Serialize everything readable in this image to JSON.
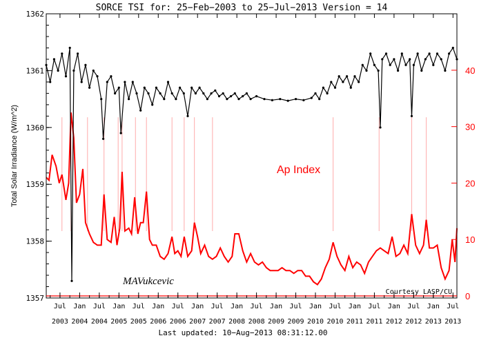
{
  "chart_data": {
    "type": "line",
    "title": "SORCE TSI for: 25−Feb−2003 to 25−Jul−2013 Version = 14",
    "footer": "Last updated: 10−Aug−2013 08:31:12.00",
    "courtesy": "Courtesy LASP/CU",
    "signature": "MAVukcevic",
    "ylabel_left": "Total Solar Irradiance (W/m^2)",
    "overlay_label": "Ap Index",
    "colors": {
      "tsi": "#000000",
      "ap": "#ff0000",
      "axis": "#000000"
    },
    "x_range": [
      2003.15,
      2013.6
    ],
    "y_left": {
      "lim": [
        1357,
        1362
      ],
      "ticks": [
        1357,
        1358,
        1359,
        1360,
        1361,
        1362
      ]
    },
    "y_right": {
      "lim": [
        0,
        50
      ],
      "ticks": [
        0,
        10,
        20,
        30,
        40
      ]
    },
    "x_ticks": [
      {
        "top": "Jul",
        "bottom": "2003",
        "x": 2003.5
      },
      {
        "top": "Jan",
        "bottom": "2004",
        "x": 2004.0
      },
      {
        "top": "Jul",
        "bottom": "2004",
        "x": 2004.5
      },
      {
        "top": "Jan",
        "bottom": "2005",
        "x": 2005.0
      },
      {
        "top": "Jul",
        "bottom": "2005",
        "x": 2005.5
      },
      {
        "top": "Jan",
        "bottom": "2006",
        "x": 2006.0
      },
      {
        "top": "Jul",
        "bottom": "2006",
        "x": 2006.5
      },
      {
        "top": "Jan",
        "bottom": "2007",
        "x": 2007.0
      },
      {
        "top": "Jul",
        "bottom": "2007",
        "x": 2007.5
      },
      {
        "top": "Jan",
        "bottom": "2008",
        "x": 2008.0
      },
      {
        "top": "Jul",
        "bottom": "2008",
        "x": 2008.5
      },
      {
        "top": "Jan",
        "bottom": "2009",
        "x": 2009.0
      },
      {
        "top": "Jul",
        "bottom": "2009",
        "x": 2009.5
      },
      {
        "top": "Jan",
        "bottom": "2010",
        "x": 2010.0
      },
      {
        "top": "Jul",
        "bottom": "2010",
        "x": 2010.5
      },
      {
        "top": "Jan",
        "bottom": "2011",
        "x": 2011.0
      },
      {
        "top": "Jul",
        "bottom": "2011",
        "x": 2011.5
      },
      {
        "top": "Jan",
        "bottom": "2012",
        "x": 2012.0
      },
      {
        "top": "Jul",
        "bottom": "2012",
        "x": 2012.5
      },
      {
        "top": "Jan",
        "bottom": "2013",
        "x": 2013.0
      },
      {
        "top": "Jul",
        "bottom": "2013",
        "x": 2013.5
      }
    ],
    "series": [
      {
        "name": "TSI",
        "axis": "left",
        "points": [
          [
            2003.15,
            1361.1
          ],
          [
            2003.25,
            1360.8
          ],
          [
            2003.35,
            1361.2
          ],
          [
            2003.45,
            1361.0
          ],
          [
            2003.55,
            1361.3
          ],
          [
            2003.65,
            1360.9
          ],
          [
            2003.75,
            1361.4
          ],
          [
            2003.8,
            1357.3
          ],
          [
            2003.85,
            1361.0
          ],
          [
            2003.95,
            1361.3
          ],
          [
            2004.05,
            1360.8
          ],
          [
            2004.15,
            1361.1
          ],
          [
            2004.25,
            1360.7
          ],
          [
            2004.35,
            1361.0
          ],
          [
            2004.45,
            1360.9
          ],
          [
            2004.55,
            1360.5
          ],
          [
            2004.6,
            1359.8
          ],
          [
            2004.7,
            1360.8
          ],
          [
            2004.8,
            1360.9
          ],
          [
            2004.9,
            1360.6
          ],
          [
            2005.0,
            1360.7
          ],
          [
            2005.05,
            1359.9
          ],
          [
            2005.15,
            1360.8
          ],
          [
            2005.25,
            1360.5
          ],
          [
            2005.35,
            1360.8
          ],
          [
            2005.45,
            1360.6
          ],
          [
            2005.55,
            1360.3
          ],
          [
            2005.65,
            1360.7
          ],
          [
            2005.75,
            1360.6
          ],
          [
            2005.85,
            1360.4
          ],
          [
            2005.95,
            1360.7
          ],
          [
            2006.05,
            1360.6
          ],
          [
            2006.15,
            1360.5
          ],
          [
            2006.25,
            1360.8
          ],
          [
            2006.35,
            1360.6
          ],
          [
            2006.45,
            1360.5
          ],
          [
            2006.55,
            1360.7
          ],
          [
            2006.65,
            1360.6
          ],
          [
            2006.75,
            1360.2
          ],
          [
            2006.85,
            1360.7
          ],
          [
            2006.95,
            1360.6
          ],
          [
            2007.05,
            1360.7
          ],
          [
            2007.15,
            1360.6
          ],
          [
            2007.25,
            1360.5
          ],
          [
            2007.35,
            1360.6
          ],
          [
            2007.45,
            1360.65
          ],
          [
            2007.55,
            1360.55
          ],
          [
            2007.65,
            1360.6
          ],
          [
            2007.75,
            1360.5
          ],
          [
            2007.85,
            1360.55
          ],
          [
            2007.95,
            1360.6
          ],
          [
            2008.05,
            1360.5
          ],
          [
            2008.15,
            1360.55
          ],
          [
            2008.25,
            1360.6
          ],
          [
            2008.35,
            1360.5
          ],
          [
            2008.5,
            1360.55
          ],
          [
            2008.7,
            1360.5
          ],
          [
            2008.9,
            1360.48
          ],
          [
            2009.1,
            1360.5
          ],
          [
            2009.3,
            1360.47
          ],
          [
            2009.5,
            1360.5
          ],
          [
            2009.7,
            1360.48
          ],
          [
            2009.9,
            1360.52
          ],
          [
            2010.0,
            1360.6
          ],
          [
            2010.1,
            1360.5
          ],
          [
            2010.2,
            1360.7
          ],
          [
            2010.3,
            1360.6
          ],
          [
            2010.4,
            1360.8
          ],
          [
            2010.5,
            1360.7
          ],
          [
            2010.6,
            1360.9
          ],
          [
            2010.7,
            1360.8
          ],
          [
            2010.8,
            1360.9
          ],
          [
            2010.9,
            1360.7
          ],
          [
            2011.0,
            1360.9
          ],
          [
            2011.1,
            1360.8
          ],
          [
            2011.2,
            1361.1
          ],
          [
            2011.3,
            1361.0
          ],
          [
            2011.4,
            1361.3
          ],
          [
            2011.5,
            1361.1
          ],
          [
            2011.6,
            1361.0
          ],
          [
            2011.65,
            1360.0
          ],
          [
            2011.7,
            1361.2
          ],
          [
            2011.8,
            1361.3
          ],
          [
            2011.9,
            1361.1
          ],
          [
            2012.0,
            1361.2
          ],
          [
            2012.1,
            1361.0
          ],
          [
            2012.2,
            1361.3
          ],
          [
            2012.3,
            1361.1
          ],
          [
            2012.4,
            1361.2
          ],
          [
            2012.45,
            1360.2
          ],
          [
            2012.5,
            1361.1
          ],
          [
            2012.6,
            1361.3
          ],
          [
            2012.7,
            1361.0
          ],
          [
            2012.8,
            1361.2
          ],
          [
            2012.9,
            1361.3
          ],
          [
            2013.0,
            1361.1
          ],
          [
            2013.1,
            1361.3
          ],
          [
            2013.2,
            1361.2
          ],
          [
            2013.3,
            1361.0
          ],
          [
            2013.4,
            1361.3
          ],
          [
            2013.5,
            1361.4
          ],
          [
            2013.6,
            1361.2
          ]
        ]
      },
      {
        "name": "Ap Index",
        "axis": "right",
        "points": [
          [
            2003.15,
            21
          ],
          [
            2003.22,
            20.5
          ],
          [
            2003.3,
            25
          ],
          [
            2003.4,
            23
          ],
          [
            2003.48,
            20
          ],
          [
            2003.55,
            21.5
          ],
          [
            2003.65,
            17
          ],
          [
            2003.72,
            20
          ],
          [
            2003.78,
            32.5
          ],
          [
            2003.85,
            28
          ],
          [
            2003.92,
            16.5
          ],
          [
            2004.0,
            18
          ],
          [
            2004.08,
            22.5
          ],
          [
            2004.15,
            13
          ],
          [
            2004.25,
            11
          ],
          [
            2004.35,
            9.5
          ],
          [
            2004.45,
            9
          ],
          [
            2004.55,
            9
          ],
          [
            2004.62,
            18
          ],
          [
            2004.7,
            10
          ],
          [
            2004.8,
            9.5
          ],
          [
            2004.88,
            14
          ],
          [
            2004.95,
            9
          ],
          [
            2005.02,
            12
          ],
          [
            2005.08,
            22
          ],
          [
            2005.15,
            11.5
          ],
          [
            2005.25,
            12
          ],
          [
            2005.32,
            11
          ],
          [
            2005.4,
            17.5
          ],
          [
            2005.48,
            11
          ],
          [
            2005.55,
            13
          ],
          [
            2005.62,
            13
          ],
          [
            2005.7,
            18.5
          ],
          [
            2005.78,
            10
          ],
          [
            2005.85,
            9
          ],
          [
            2005.95,
            9
          ],
          [
            2006.05,
            7
          ],
          [
            2006.15,
            6.5
          ],
          [
            2006.25,
            7.5
          ],
          [
            2006.35,
            10.5
          ],
          [
            2006.42,
            7.5
          ],
          [
            2006.5,
            8
          ],
          [
            2006.58,
            7
          ],
          [
            2006.66,
            10.5
          ],
          [
            2006.75,
            7
          ],
          [
            2006.85,
            8
          ],
          [
            2006.92,
            13
          ],
          [
            2007.0,
            10.5
          ],
          [
            2007.08,
            7.5
          ],
          [
            2007.18,
            9
          ],
          [
            2007.28,
            7
          ],
          [
            2007.38,
            6.5
          ],
          [
            2007.48,
            7
          ],
          [
            2007.58,
            8.5
          ],
          [
            2007.68,
            7
          ],
          [
            2007.78,
            6
          ],
          [
            2007.88,
            7
          ],
          [
            2007.95,
            11
          ],
          [
            2008.05,
            11
          ],
          [
            2008.15,
            8
          ],
          [
            2008.25,
            6
          ],
          [
            2008.35,
            7.5
          ],
          [
            2008.45,
            6
          ],
          [
            2008.55,
            5.5
          ],
          [
            2008.65,
            6
          ],
          [
            2008.75,
            5
          ],
          [
            2008.85,
            4.5
          ],
          [
            2008.95,
            4.5
          ],
          [
            2009.05,
            4.5
          ],
          [
            2009.15,
            5
          ],
          [
            2009.25,
            4.5
          ],
          [
            2009.35,
            4.5
          ],
          [
            2009.45,
            4
          ],
          [
            2009.55,
            4.5
          ],
          [
            2009.65,
            4.5
          ],
          [
            2009.75,
            3.5
          ],
          [
            2009.85,
            3.5
          ],
          [
            2009.95,
            2.5
          ],
          [
            2010.05,
            2
          ],
          [
            2010.15,
            3
          ],
          [
            2010.25,
            5
          ],
          [
            2010.35,
            6.5
          ],
          [
            2010.45,
            9.5
          ],
          [
            2010.55,
            7
          ],
          [
            2010.65,
            5.5
          ],
          [
            2010.75,
            4.5
          ],
          [
            2010.85,
            7
          ],
          [
            2010.95,
            5
          ],
          [
            2011.05,
            6
          ],
          [
            2011.15,
            5.5
          ],
          [
            2011.25,
            4
          ],
          [
            2011.35,
            6
          ],
          [
            2011.45,
            7
          ],
          [
            2011.55,
            8
          ],
          [
            2011.65,
            8.5
          ],
          [
            2011.75,
            8
          ],
          [
            2011.85,
            7.5
          ],
          [
            2011.95,
            10.5
          ],
          [
            2012.05,
            7
          ],
          [
            2012.15,
            7.5
          ],
          [
            2012.25,
            9
          ],
          [
            2012.35,
            7.5
          ],
          [
            2012.45,
            14.5
          ],
          [
            2012.55,
            9
          ],
          [
            2012.65,
            7.5
          ],
          [
            2012.75,
            9
          ],
          [
            2012.82,
            13.5
          ],
          [
            2012.9,
            8.5
          ],
          [
            2013.0,
            8.5
          ],
          [
            2013.1,
            9
          ],
          [
            2013.2,
            5
          ],
          [
            2013.3,
            3
          ],
          [
            2013.4,
            4.5
          ],
          [
            2013.48,
            10
          ],
          [
            2013.55,
            6
          ],
          [
            2013.6,
            12
          ]
        ]
      }
    ],
    "vertical_markers": [
      2003.55,
      2003.78,
      2004.2,
      2004.62,
      2004.98,
      2005.08,
      2005.42,
      2005.7,
      2006.35,
      2006.66,
      2006.92,
      2007.38,
      2010.45,
      2011.62,
      2012.45,
      2012.82
    ]
  }
}
